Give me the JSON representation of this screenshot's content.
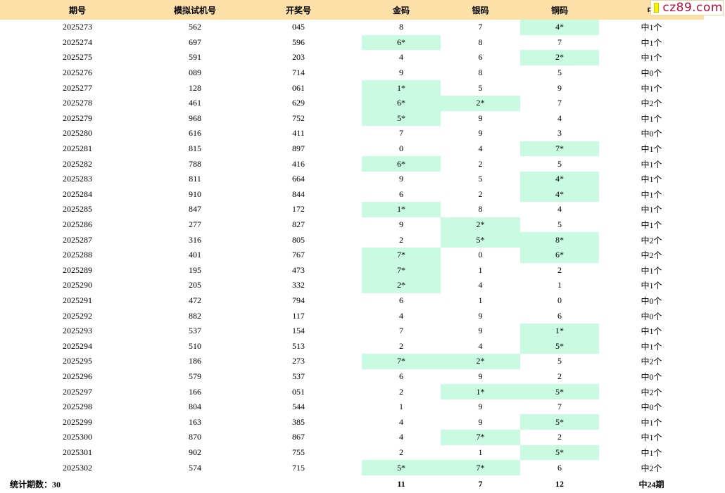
{
  "table": {
    "header": [
      "期号",
      "模拟试机号",
      "开奖号",
      "金码",
      "银码",
      "铜码",
      "中"
    ],
    "rows": [
      [
        "2025273",
        "562",
        "045",
        "8",
        "7",
        "4*",
        "中1个"
      ],
      [
        "2025274",
        "697",
        "596",
        "6*",
        "8",
        "7",
        "中1个"
      ],
      [
        "2025275",
        "591",
        "203",
        "4",
        "6",
        "2*",
        "中1个"
      ],
      [
        "2025276",
        "089",
        "714",
        "9",
        "8",
        "5",
        "中0个"
      ],
      [
        "2025277",
        "128",
        "061",
        "1*",
        "5",
        "9",
        "中1个"
      ],
      [
        "2025278",
        "461",
        "629",
        "6*",
        "2*",
        "7",
        "中2个"
      ],
      [
        "2025279",
        "968",
        "752",
        "5*",
        "9",
        "4",
        "中1个"
      ],
      [
        "2025280",
        "616",
        "411",
        "7",
        "9",
        "3",
        "中0个"
      ],
      [
        "2025281",
        "815",
        "897",
        "0",
        "4",
        "7*",
        "中1个"
      ],
      [
        "2025282",
        "788",
        "416",
        "6*",
        "2",
        "5",
        "中1个"
      ],
      [
        "2025283",
        "811",
        "664",
        "9",
        "5",
        "4*",
        "中1个"
      ],
      [
        "2025284",
        "910",
        "844",
        "6",
        "2",
        "4*",
        "中1个"
      ],
      [
        "2025285",
        "847",
        "172",
        "1*",
        "8",
        "4",
        "中1个"
      ],
      [
        "2025286",
        "277",
        "827",
        "9",
        "2*",
        "5",
        "中1个"
      ],
      [
        "2025287",
        "316",
        "805",
        "2",
        "5*",
        "8*",
        "中2个"
      ],
      [
        "2025288",
        "401",
        "767",
        "7*",
        "0",
        "6*",
        "中2个"
      ],
      [
        "2025289",
        "195",
        "473",
        "7*",
        "1",
        "2",
        "中1个"
      ],
      [
        "2025290",
        "205",
        "332",
        "2*",
        "4",
        "1",
        "中1个"
      ],
      [
        "2025291",
        "472",
        "794",
        "6",
        "1",
        "0",
        "中0个"
      ],
      [
        "2025292",
        "882",
        "117",
        "4",
        "9",
        "6",
        "中0个"
      ],
      [
        "2025293",
        "537",
        "154",
        "7",
        "9",
        "1*",
        "中1个"
      ],
      [
        "2025294",
        "510",
        "513",
        "2",
        "4",
        "5*",
        "中1个"
      ],
      [
        "2025295",
        "186",
        "273",
        "7*",
        "2*",
        "5",
        "中2个"
      ],
      [
        "2025296",
        "579",
        "537",
        "6",
        "9",
        "2",
        "中0个"
      ],
      [
        "2025297",
        "166",
        "051",
        "2",
        "1*",
        "5*",
        "中2个"
      ],
      [
        "2025298",
        "804",
        "544",
        "1",
        "9",
        "7",
        "中0个"
      ],
      [
        "2025299",
        "163",
        "385",
        "4",
        "9",
        "5*",
        "中1个"
      ],
      [
        "2025300",
        "870",
        "867",
        "4",
        "7*",
        "2",
        "中1个"
      ],
      [
        "2025301",
        "902",
        "755",
        "2",
        "1",
        "5*",
        "中1个"
      ],
      [
        "2025302",
        "574",
        "715",
        "5*",
        "7*",
        "6",
        "中2个"
      ]
    ],
    "footer": {
      "label": "统计期数：30",
      "gold": "11",
      "silver": "7",
      "copper": "12",
      "total": "中24期"
    }
  },
  "logo": "cz89.com"
}
